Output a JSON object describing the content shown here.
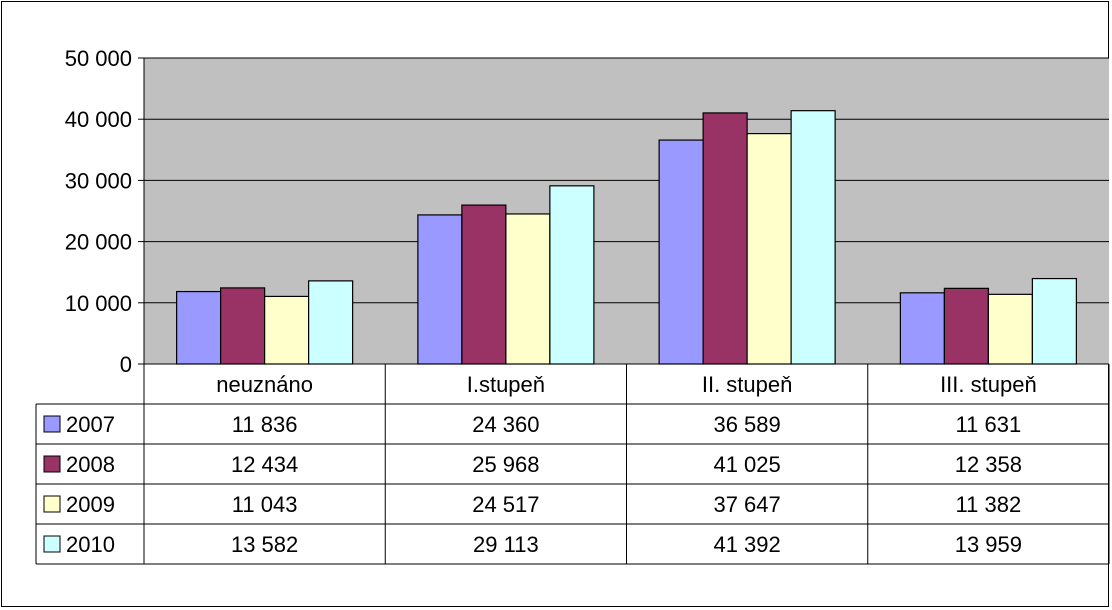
{
  "chart_data": {
    "type": "bar",
    "categories": [
      "neuznáno",
      "I.stupeň",
      "II. stupeň",
      "III. stupeň"
    ],
    "series": [
      {
        "name": "2007",
        "color": "#9999ff",
        "values": [
          11836,
          24360,
          36589,
          11631
        ],
        "labels": [
          "11 836",
          "24 360",
          "36 589",
          "11 631"
        ]
      },
      {
        "name": "2008",
        "color": "#993366",
        "values": [
          12434,
          25968,
          41025,
          12358
        ],
        "labels": [
          "12 434",
          "25 968",
          "41 025",
          "12 358"
        ]
      },
      {
        "name": "2009",
        "color": "#ffffcc",
        "values": [
          11043,
          24517,
          37647,
          11382
        ],
        "labels": [
          "11 043",
          "24 517",
          "37 647",
          "11 382"
        ]
      },
      {
        "name": "2010",
        "color": "#ccffff",
        "values": [
          13582,
          29113,
          41392,
          13959
        ],
        "labels": [
          "13 582",
          "29 113",
          "41 392",
          "13 959"
        ]
      }
    ],
    "ylim": [
      0,
      50000
    ],
    "yticks": [
      0,
      10000,
      20000,
      30000,
      40000,
      50000
    ],
    "ytick_labels": [
      "0",
      "10 000",
      "20 000",
      "30 000",
      "40 000",
      "50 000"
    ],
    "grid": true,
    "plot_background": "#c0c0c0",
    "legend": "data-table"
  }
}
